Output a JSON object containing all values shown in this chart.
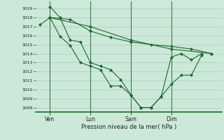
{
  "background_color": "#cce8d8",
  "grid_color": "#aaccbb",
  "line_color": "#1a6b2a",
  "xlabel": "Pression niveau de la mer( hPa )",
  "ylim": [
    1007.5,
    1019.8
  ],
  "yticks": [
    1008,
    1009,
    1010,
    1011,
    1012,
    1013,
    1014,
    1015,
    1016,
    1017,
    1018,
    1019
  ],
  "day_labels": [
    "Ven",
    "Lun",
    "Sam",
    "Dim"
  ],
  "figwidth": 3.2,
  "figheight": 2.0,
  "dpi": 100,
  "lines": [
    {
      "x": [
        0.0,
        0.5,
        1.0,
        1.5,
        2.0,
        2.5,
        3.0,
        3.5,
        4.0,
        4.5,
        5.0,
        5.5,
        6.0,
        6.5,
        7.0,
        7.5,
        8.0
      ],
      "y": [
        1017.2,
        1018.0,
        1015.9,
        1014.9,
        1013.0,
        1012.6,
        1012.2,
        1010.4,
        1010.4,
        1009.4,
        1008.0,
        1008.0,
        1009.2,
        1010.6,
        1011.6,
        1011.6,
        1013.8
      ]
    },
    {
      "x": [
        0.5,
        1.0,
        1.5,
        2.0,
        2.5,
        3.0,
        3.5,
        4.0,
        4.5,
        5.0,
        5.5,
        6.0,
        6.5,
        7.0,
        7.5,
        8.0
      ],
      "y": [
        1019.2,
        1018.0,
        1015.5,
        1015.3,
        1013.0,
        1012.6,
        1012.2,
        1011.1,
        1009.4,
        1008.0,
        1008.0,
        1009.2,
        1013.6,
        1014.0,
        1013.3,
        1014.0
      ]
    },
    {
      "x": [
        0.5,
        2.5,
        4.5,
        6.5,
        8.5
      ],
      "y": [
        1018.0,
        1017.0,
        1015.5,
        1014.5,
        1014.0
      ]
    },
    {
      "x": [
        0.5,
        1.5,
        2.5,
        3.5,
        4.5,
        5.5,
        6.5,
        7.5,
        8.5
      ],
      "y": [
        1018.0,
        1017.8,
        1016.5,
        1015.8,
        1015.3,
        1015.0,
        1014.8,
        1014.5,
        1014.0
      ]
    }
  ]
}
